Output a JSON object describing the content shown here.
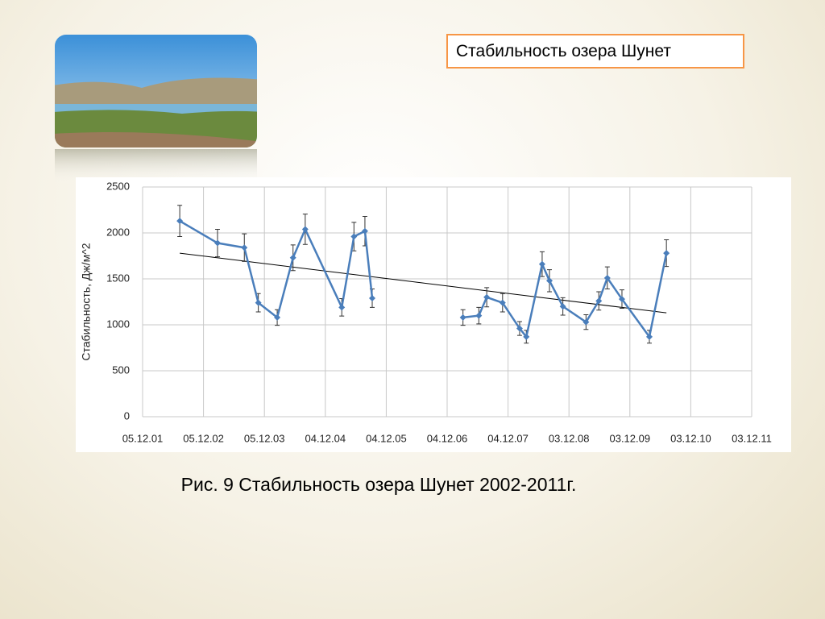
{
  "slide": {
    "title": "Стабильность озера Шунет",
    "caption": "Рис. 9 Стабильность озера Шунет 2002-2011г."
  },
  "chart_data": {
    "type": "line",
    "y_label": "Стабильность, Дж/м^2",
    "x": [
      2002.54,
      2003.16,
      2003.6,
      2003.83,
      2004.14,
      2004.4,
      2004.6,
      2005.2,
      2005.4,
      2005.58,
      2005.7,
      2006.4,
      2007.19,
      2007.45,
      2007.58,
      2007.84,
      2008.12,
      2008.23,
      2008.49,
      2008.61,
      2008.83,
      2009.21,
      2009.42,
      2009.56,
      2009.8,
      2010.25,
      2010.53
    ],
    "series": [
      {
        "color": "#4a7ebb",
        "values": [
          2130,
          1890,
          1840,
          1240,
          1080,
          1730,
          2040,
          1190,
          1960,
          2020,
          1290,
          null,
          1080,
          1100,
          1300,
          1240,
          960,
          870,
          1660,
          1480,
          1200,
          1030,
          1260,
          1510,
          1280,
          870,
          1780
        ],
        "errors": [
          170,
          150,
          150,
          100,
          85,
          140,
          165,
          95,
          155,
          160,
          100,
          null,
          85,
          90,
          105,
          100,
          75,
          70,
          135,
          120,
          95,
          80,
          100,
          120,
          100,
          70,
          145
        ]
      }
    ],
    "trendline": {
      "x": [
        2002.54,
        2010.53
      ],
      "values": [
        1780,
        1130
      ],
      "color": "#000000"
    },
    "xlim": [
      2001.93,
      2011.93
    ],
    "xticks": [
      {
        "value": 2001.93,
        "label": "05.12.01"
      },
      {
        "value": 2002.93,
        "label": "05.12.02"
      },
      {
        "value": 2003.93,
        "label": "05.12.03"
      },
      {
        "value": 2004.93,
        "label": "04.12.04"
      },
      {
        "value": 2005.93,
        "label": "04.12.05"
      },
      {
        "value": 2006.93,
        "label": "04.12.06"
      },
      {
        "value": 2007.93,
        "label": "04.12.07"
      },
      {
        "value": 2008.93,
        "label": "03.12.08"
      },
      {
        "value": 2009.93,
        "label": "03.12.09"
      },
      {
        "value": 2010.93,
        "label": "03.12.10"
      },
      {
        "value": 2011.93,
        "label": "03.12.11"
      }
    ],
    "ylim": [
      0,
      2500
    ],
    "yticks": [
      0,
      500,
      1000,
      1500,
      2000,
      2500
    ],
    "grid": true
  }
}
